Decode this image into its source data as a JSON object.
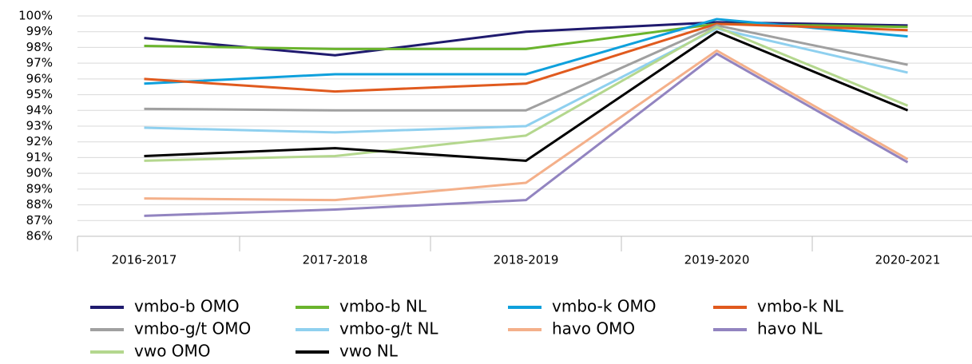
{
  "chart_data": {
    "type": "line",
    "categories": [
      "2016-2017",
      "2017-2018",
      "2018-2019",
      "2019-2020",
      "2020-2021"
    ],
    "series": [
      {
        "name": "vmbo-b OMO",
        "color": "#1f1a6e",
        "values": [
          98.6,
          97.5,
          99.0,
          99.6,
          99.4
        ]
      },
      {
        "name": "vmbo-b NL",
        "color": "#6ab42d",
        "values": [
          98.1,
          97.9,
          97.9,
          99.5,
          99.3
        ]
      },
      {
        "name": "vmbo-k OMO",
        "color": "#0ea0dc",
        "values": [
          95.7,
          96.3,
          96.3,
          99.8,
          98.7
        ]
      },
      {
        "name": "vmbo-k NL",
        "color": "#e05a1e",
        "values": [
          96.0,
          95.2,
          95.7,
          99.5,
          99.1
        ]
      },
      {
        "name": "vmbo-g/t OMO",
        "color": "#a0a0a0",
        "values": [
          94.1,
          94.0,
          94.0,
          99.4,
          96.9
        ]
      },
      {
        "name": "vmbo-g/t NL",
        "color": "#8fd0ef",
        "values": [
          92.9,
          92.6,
          93.0,
          99.2,
          96.4
        ]
      },
      {
        "name": "havo OMO",
        "color": "#f4b08a",
        "values": [
          88.4,
          88.3,
          89.4,
          97.8,
          90.9
        ]
      },
      {
        "name": "havo NL",
        "color": "#9284c0",
        "values": [
          87.3,
          87.7,
          88.3,
          97.6,
          90.7
        ]
      },
      {
        "name": "vwo OMO",
        "color": "#b4d78e",
        "values": [
          90.8,
          91.1,
          92.4,
          99.3,
          94.3
        ]
      },
      {
        "name": "vwo NL",
        "color": "#000000",
        "values": [
          91.1,
          91.6,
          90.8,
          99.0,
          94.0
        ]
      }
    ],
    "ylim": [
      86,
      100
    ],
    "yticks": [
      {
        "value": 86,
        "label": "86%"
      },
      {
        "value": 87,
        "label": "87%"
      },
      {
        "value": 88,
        "label": "88%"
      },
      {
        "value": 89,
        "label": "89%"
      },
      {
        "value": 90,
        "label": "90%"
      },
      {
        "value": 91,
        "label": "91%"
      },
      {
        "value": 92,
        "label": "92%"
      },
      {
        "value": 93,
        "label": "93%"
      },
      {
        "value": 94,
        "label": "94%"
      },
      {
        "value": 95,
        "label": "95%"
      },
      {
        "value": 96,
        "label": "96%"
      },
      {
        "value": 97,
        "label": "97%"
      },
      {
        "value": 98,
        "label": "98%"
      },
      {
        "value": 99,
        "label": "99%"
      },
      {
        "value": 100,
        "label": "100%"
      }
    ],
    "grid": true,
    "legend": "bottom"
  }
}
